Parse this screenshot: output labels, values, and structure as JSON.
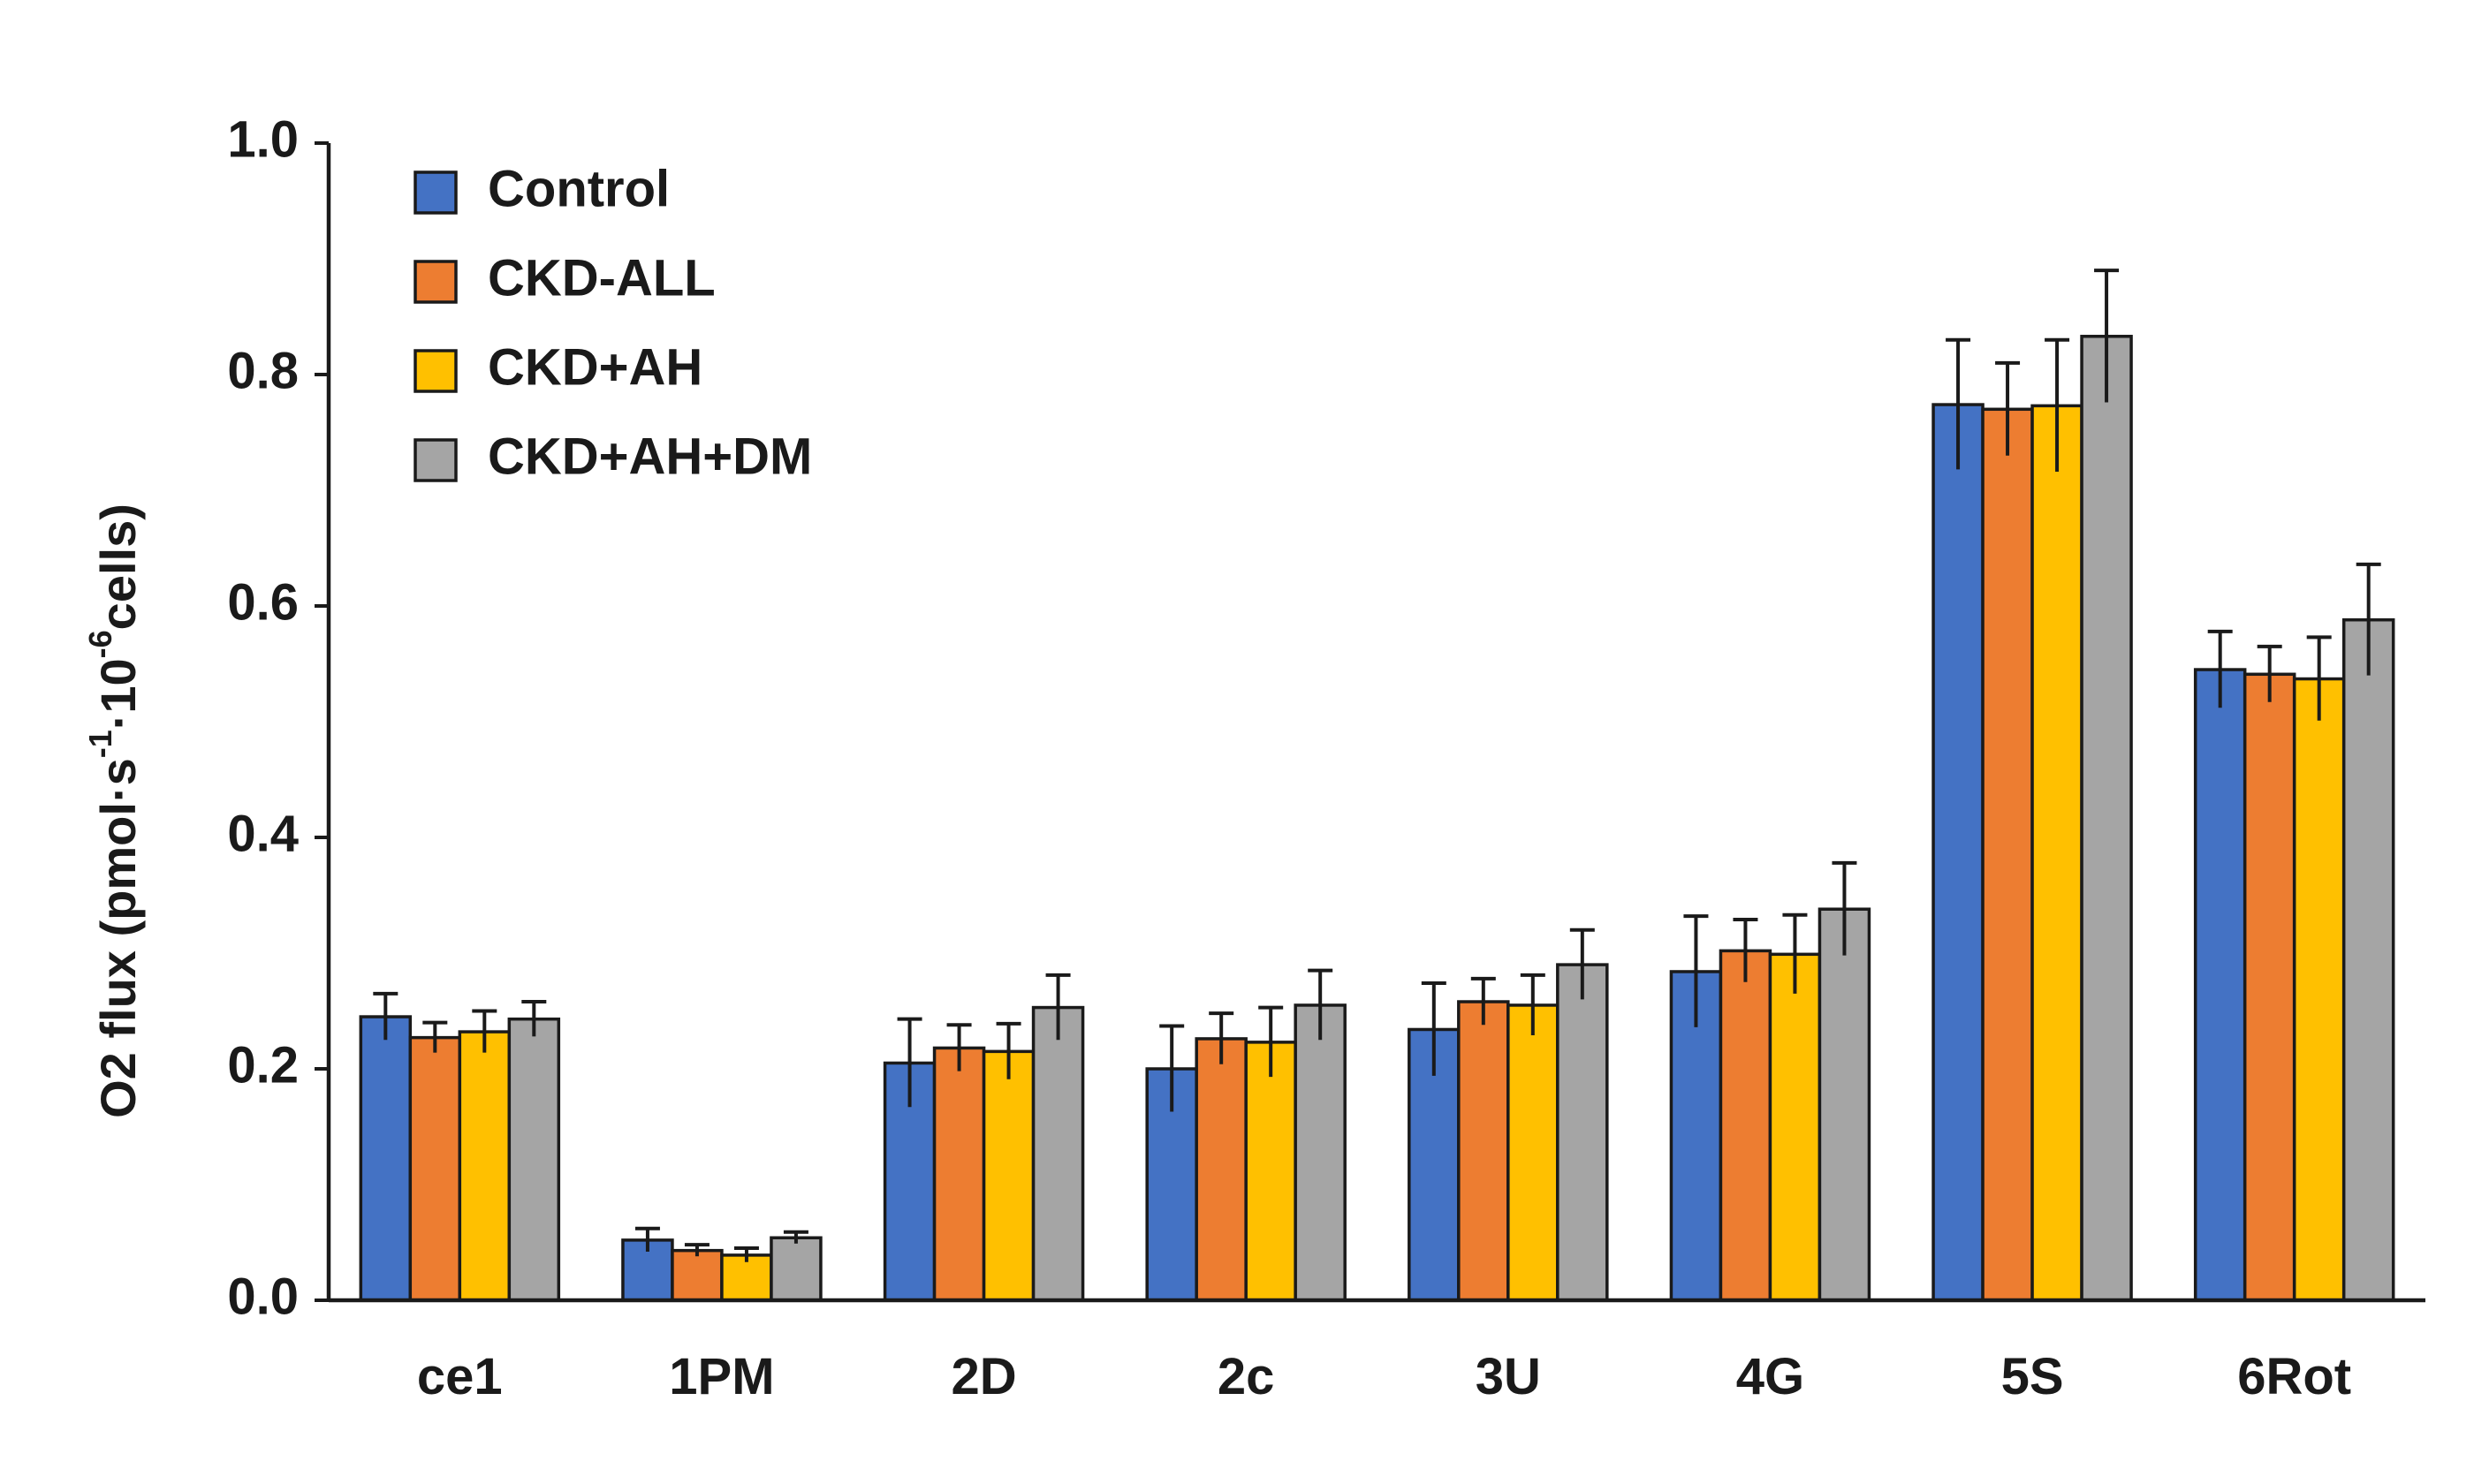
{
  "chart_data": {
    "type": "bar",
    "title": "",
    "xlabel": "",
    "ylabel": {
      "prefix": "O2 flux (pmol·s",
      "sup1": "-1",
      "mid": "·10",
      "sup2": "-6",
      "suffix": "cells)"
    },
    "ylim": [
      0,
      1.0
    ],
    "yticks": [
      0.0,
      0.2,
      0.4,
      0.6,
      0.8,
      1.0
    ],
    "ytick_labels": [
      "0.0",
      "0.2",
      "0.4",
      "0.6",
      "0.8",
      "1.0"
    ],
    "grid": false,
    "legend_position": "top-left",
    "categories": [
      "ce1",
      "1PM",
      "2D",
      "2c",
      "3U",
      "4G",
      "5S",
      "6Rot"
    ],
    "series": [
      {
        "name": "Control",
        "color": "#4472C4",
        "values": [
          0.245,
          0.052,
          0.205,
          0.2,
          0.234,
          0.284,
          0.774,
          0.545
        ],
        "errors": [
          0.02,
          0.01,
          0.038,
          0.037,
          0.04,
          0.048,
          0.056,
          0.033
        ]
      },
      {
        "name": "CKD-ALL",
        "color": "#ED7D31",
        "values": [
          0.227,
          0.043,
          0.218,
          0.226,
          0.258,
          0.302,
          0.77,
          0.541
        ],
        "errors": [
          0.013,
          0.005,
          0.02,
          0.022,
          0.02,
          0.027,
          0.04,
          0.024
        ]
      },
      {
        "name": "CKD+AH",
        "color": "#FFC000",
        "values": [
          0.232,
          0.039,
          0.215,
          0.223,
          0.255,
          0.299,
          0.773,
          0.537
        ],
        "errors": [
          0.018,
          0.006,
          0.024,
          0.03,
          0.026,
          0.034,
          0.057,
          0.036
        ]
      },
      {
        "name": "CKD+AH+DM",
        "color": "#A5A5A5",
        "values": [
          0.243,
          0.054,
          0.253,
          0.255,
          0.29,
          0.338,
          0.833,
          0.588
        ],
        "errors": [
          0.015,
          0.005,
          0.028,
          0.03,
          0.03,
          0.04,
          0.057,
          0.048
        ]
      }
    ]
  }
}
